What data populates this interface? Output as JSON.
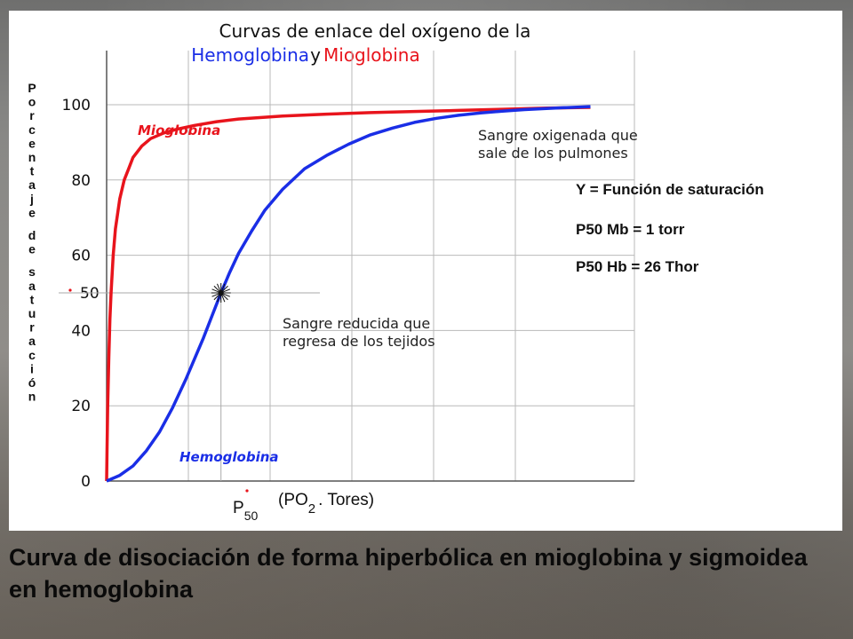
{
  "chart_data": {
    "type": "line",
    "title_line1": "Curvas de enlace del oxígeno de la",
    "title_line2_part1": "Hemoglobina",
    "title_line2_part2": "y",
    "title_line2_part3": "Mioglobina",
    "ylabel": "Porcentaje de saturación",
    "xlabel_main": "(PO",
    "xlabel_sub": "2",
    "xlabel_rest": ". Tores)",
    "p50_label_main": "P",
    "p50_label_sub": "50",
    "ylim": [
      0,
      100
    ],
    "xlim": [
      0,
      120
    ],
    "yticks": [
      "0",
      "20",
      "40",
      "60",
      "80",
      "100"
    ],
    "ytick_values": [
      0,
      20,
      40,
      60,
      80,
      100
    ],
    "y50_label": "50",
    "grid": true,
    "series": [
      {
        "name": "Mioglobina",
        "color": "#e8141c",
        "x": [
          0,
          0.1,
          0.25,
          0.5,
          0.75,
          1,
          1.5,
          2,
          3,
          4,
          5,
          6,
          8,
          10,
          13,
          16,
          20,
          25,
          30,
          40,
          50,
          60,
          70,
          80,
          90,
          100,
          110
        ],
        "y": [
          0,
          9,
          20,
          33,
          43,
          50,
          60,
          67,
          75,
          80,
          83,
          86,
          89,
          91,
          92.5,
          93.5,
          94.5,
          95.5,
          96.2,
          97,
          97.5,
          97.9,
          98.2,
          98.5,
          98.8,
          99.1,
          99.3
        ]
      },
      {
        "name": "Hemoglobina",
        "color": "#1a2ee6",
        "x": [
          0,
          3,
          6,
          9,
          12,
          15,
          18,
          20,
          22,
          24,
          26,
          28,
          30,
          33,
          36,
          40,
          45,
          50,
          55,
          60,
          65,
          70,
          75,
          80,
          85,
          90,
          95,
          100,
          110
        ],
        "y": [
          0,
          1.5,
          4,
          8,
          13,
          19.5,
          27,
          32.5,
          38,
          44,
          50,
          55.5,
          60.5,
          66.5,
          72,
          77.5,
          83,
          86.5,
          89.5,
          92,
          93.8,
          95.3,
          96.4,
          97.2,
          97.8,
          98.3,
          98.7,
          99,
          99.5
        ]
      }
    ],
    "annotations": {
      "oxigenada_line1": "Sangre oxigenada que",
      "oxigenada_line2": "sale de los pulmones",
      "reducida_line1": "Sangre reducida que",
      "reducida_line2": "regresa de los tejidos",
      "p50_point": {
        "x": 26,
        "y": 50
      }
    }
  },
  "notes": {
    "line1": "Y = Función de saturación",
    "line2": "P50 Mb = 1 torr",
    "line3": "P50 Hb = 26 Thor"
  },
  "caption": {
    "text": "Curva de disociación de forma hiperbólica en mioglobina y sigmoidea en hemoglobina"
  },
  "colors": {
    "hemoglobina": "#1a2ee6",
    "mioglobina": "#e8141c",
    "grid": "#b9b9b9",
    "axis": "#555555"
  }
}
